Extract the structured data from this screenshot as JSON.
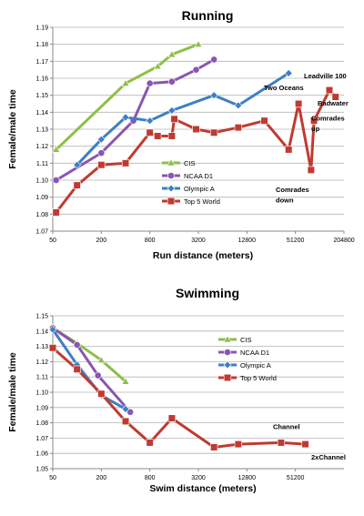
{
  "chart_data": [
    {
      "type": "line",
      "title": "Running",
      "xlabel": "Run distance (meters)",
      "ylabel": "Female/male time",
      "x_scale": "log2",
      "xlim": [
        50,
        204800
      ],
      "ylim": [
        1.07,
        1.19
      ],
      "x_ticks": [
        "50",
        "200",
        "800",
        "3200",
        "12800",
        "51200",
        "204800"
      ],
      "y_ticks": [
        "1.07",
        "1.08",
        "1.09",
        "1.10",
        "1.11",
        "1.12",
        "1.13",
        "1.14",
        "1.15",
        "1.16",
        "1.17",
        "1.18",
        "1.19"
      ],
      "grid": "horizontal",
      "legend_position": "center",
      "series": [
        {
          "name": "CIS",
          "color": "#8dbf47",
          "marker": "triangle",
          "points": [
            [
              55,
              1.118
            ],
            [
              400,
              1.157
            ],
            [
              1000,
              1.167
            ],
            [
              1500,
              1.174
            ],
            [
              3200,
              1.18
            ]
          ]
        },
        {
          "name": "NCAA D1",
          "color": "#8a55b3",
          "marker": "circle",
          "points": [
            [
              55,
              1.1
            ],
            [
              200,
              1.116
            ],
            [
              500,
              1.135
            ],
            [
              800,
              1.157
            ],
            [
              1500,
              1.158
            ],
            [
              3000,
              1.165
            ],
            [
              5000,
              1.171
            ]
          ]
        },
        {
          "name": "Olympic A",
          "color": "#3e7fc4",
          "marker": "diamond",
          "points": [
            [
              100,
              1.109
            ],
            [
              200,
              1.124
            ],
            [
              400,
              1.137
            ],
            [
              800,
              1.135
            ],
            [
              1500,
              1.141
            ],
            [
              5000,
              1.15
            ],
            [
              10000,
              1.144
            ],
            [
              42195,
              1.163
            ]
          ]
        },
        {
          "name": "Top 5 World",
          "color": "#c03a32",
          "marker": "square",
          "points": [
            [
              55,
              1.081
            ],
            [
              100,
              1.097
            ],
            [
              200,
              1.109
            ],
            [
              400,
              1.11
            ],
            [
              800,
              1.128
            ],
            [
              1000,
              1.126
            ],
            [
              1500,
              1.126
            ],
            [
              1609,
              1.136
            ],
            [
              3000,
              1.13
            ],
            [
              5000,
              1.128
            ],
            [
              10000,
              1.131
            ],
            [
              21097,
              1.135
            ],
            [
              42195,
              1.118
            ],
            [
              56000,
              1.145
            ],
            [
              80000,
              1.106
            ],
            [
              87000,
              1.135
            ],
            [
              135000,
              1.153
            ],
            [
              160934,
              1.149
            ]
          ]
        }
      ],
      "annotations": [
        {
          "text": "Two Oceans",
          "x": 56000,
          "y": 1.153
        },
        {
          "text": "Leadville 100",
          "x": 160934,
          "y": 1.16
        },
        {
          "text": "Badwater",
          "x": 135000,
          "y": 1.144
        },
        {
          "text": "Comrades",
          "x": 87000,
          "y": 1.135
        },
        {
          "text": "up",
          "x": 87000,
          "y": 1.129
        },
        {
          "text": "Comrades",
          "x": 80000,
          "y": 1.093
        },
        {
          "text": "down",
          "x": 80000,
          "y": 1.087
        }
      ]
    },
    {
      "type": "line",
      "title": "Swimming",
      "xlabel": "Swim distance (meters)",
      "ylabel": "Female/male time",
      "x_scale": "log2",
      "xlim": [
        50,
        204800
      ],
      "ylim": [
        1.05,
        1.15
      ],
      "x_ticks": [
        "50",
        "200",
        "800",
        "3200",
        "12800",
        "51200"
      ],
      "y_ticks": [
        "1.05",
        "1.06",
        "1.07",
        "1.08",
        "1.09",
        "1.10",
        "1.11",
        "1.12",
        "1.13",
        "1.14",
        "1.15"
      ],
      "grid": "horizontal",
      "legend_position": "center-right",
      "series": [
        {
          "name": "CIS",
          "color": "#8dbf47",
          "marker": "triangle",
          "points": [
            [
              50,
              1.142
            ],
            [
              100,
              1.132
            ],
            [
              200,
              1.121
            ],
            [
              400,
              1.107
            ]
          ]
        },
        {
          "name": "NCAA D1",
          "color": "#8a55b3",
          "marker": "circle",
          "points": [
            [
              50,
              1.142
            ],
            [
              100,
              1.131
            ],
            [
              182,
              1.111
            ],
            [
              457,
              1.087
            ]
          ]
        },
        {
          "name": "Olympic A",
          "color": "#3e7fc4",
          "marker": "diamond",
          "points": [
            [
              50,
              1.141
            ],
            [
              100,
              1.118
            ],
            [
              200,
              1.098
            ],
            [
              400,
              1.089
            ]
          ]
        },
        {
          "name": "Top 5 World",
          "color": "#c03a32",
          "marker": "square",
          "points": [
            [
              50,
              1.129
            ],
            [
              100,
              1.115
            ],
            [
              200,
              1.099
            ],
            [
              400,
              1.081
            ],
            [
              800,
              1.067
            ],
            [
              1500,
              1.083
            ],
            [
              5000,
              1.064
            ],
            [
              10000,
              1.066
            ],
            [
              34000,
              1.067
            ],
            [
              68000,
              1.066
            ]
          ]
        }
      ],
      "annotations": [
        {
          "text": "Channel",
          "x": 34000,
          "y": 1.076
        },
        {
          "text": "2xChannel",
          "x": 68000,
          "y": 1.056
        }
      ]
    }
  ]
}
